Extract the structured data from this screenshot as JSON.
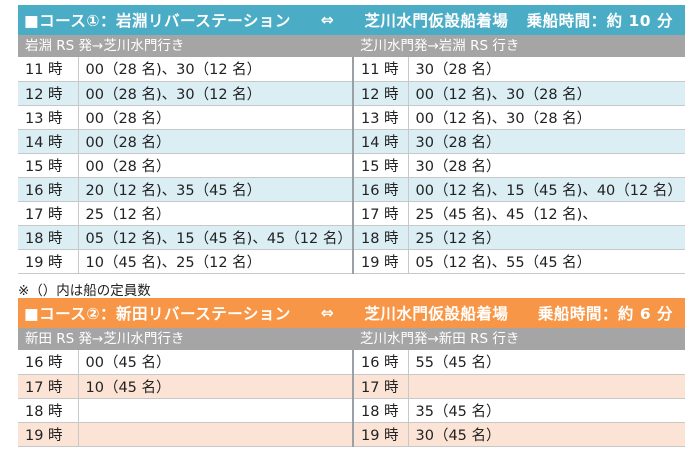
{
  "course1": {
    "banner": {
      "route": "■コース①：岩淵リバーステーション",
      "arrow": "⇔",
      "dest": "芝川水門仮設船着場",
      "time": "乗船時間：約 10 分"
    },
    "left_header": "岩淵 RS 発→芝川水門行き",
    "right_header": "芝川水門発→岩淵 RS 行き",
    "rows": [
      {
        "left_hour": "11 時",
        "left_times": "00（28 名)、30（12 名）",
        "right_hour": "11 時",
        "right_times": "30（28 名）"
      },
      {
        "left_hour": "12 時",
        "left_times": "00（28 名)、30（12 名）",
        "right_hour": "12 時",
        "right_times": "00（12 名)、30（28 名）"
      },
      {
        "left_hour": "13 時",
        "left_times": "00（28 名）",
        "right_hour": "13 時",
        "right_times": "00（12 名)、30（28 名）"
      },
      {
        "left_hour": "14 時",
        "left_times": "00（28 名）",
        "right_hour": "14 時",
        "right_times": "30（28 名）"
      },
      {
        "left_hour": "15 時",
        "left_times": "00（28 名）",
        "right_hour": "15 時",
        "right_times": "30（28 名）"
      },
      {
        "left_hour": "16 時",
        "left_times": "20（12 名)、35（45 名）",
        "right_hour": "16 時",
        "right_times": "00（12 名)、15（45 名)、40（12 名）"
      },
      {
        "left_hour": "17 時",
        "left_times": "25（12 名）",
        "right_hour": "17 時",
        "right_times": "25（45 名)、45（12 名)、"
      },
      {
        "left_hour": "18 時",
        "left_times": "05（12 名)、15（45 名)、45（12 名）",
        "right_hour": "18 時",
        "right_times": "25（12 名）"
      },
      {
        "left_hour": "19 時",
        "left_times": "10（45 名)、25（12 名）",
        "right_hour": "19 時",
        "right_times": "05（12 名)、55（45 名）"
      }
    ]
  },
  "note": "※（）内は船の定員数",
  "course2": {
    "banner": {
      "route": "■コース②：新田リバーステーション",
      "arrow": "⇔",
      "dest": "芝川水門仮設船着場",
      "time": "乗船時間：約 6 分"
    },
    "left_header": "新田 RS 発→芝川水門行き",
    "right_header": "芝川水門発→新田 RS 行き",
    "rows": [
      {
        "left_hour": "16 時",
        "left_times": "00（45 名）",
        "right_hour": "16 時",
        "right_times": "55（45 名）"
      },
      {
        "left_hour": "17 時",
        "left_times": "10（45 名）",
        "right_hour": "17 時",
        "right_times": ""
      },
      {
        "left_hour": "18 時",
        "left_times": "",
        "right_hour": "18 時",
        "right_times": "35（45 名）"
      },
      {
        "left_hour": "19 時",
        "left_times": "",
        "right_hour": "19 時",
        "right_times": "30（45 名）"
      }
    ]
  },
  "colors": {
    "course1_banner": "#4bacc6",
    "course1_subhead": "#a5a5a5",
    "course1_row_alt": "#dbeef4",
    "course2_banner": "#f79646",
    "course2_subhead": "#a5a5a5",
    "course2_row_alt": "#fbe4d5"
  }
}
